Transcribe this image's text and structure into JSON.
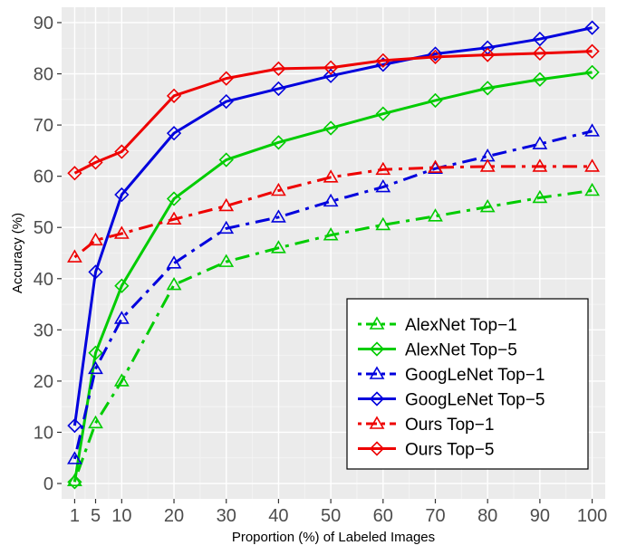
{
  "chart_data": {
    "type": "line",
    "xlabel": "Proportion (%) of Labeled Images",
    "ylabel": "Accuracy (%)",
    "x": [
      1,
      5,
      10,
      20,
      30,
      40,
      50,
      60,
      70,
      80,
      90,
      100
    ],
    "xticks": [
      1,
      5,
      10,
      20,
      30,
      40,
      50,
      60,
      70,
      80,
      90,
      100
    ],
    "yticks": [
      0,
      10,
      20,
      30,
      40,
      50,
      60,
      70,
      80,
      90
    ],
    "xlim": [
      -1.5,
      102.5
    ],
    "ylim": [
      -3,
      93
    ],
    "grid": true,
    "legend_position": "bottom-right",
    "series": [
      {
        "name": "AlexNet Top−1",
        "color": "#00cc00",
        "marker": "triangle",
        "dash": "dotdash",
        "values": [
          0.5,
          11.8,
          20,
          38.8,
          43.3,
          46,
          48.5,
          50.5,
          52.2,
          54,
          55.8,
          57.2
        ]
      },
      {
        "name": "AlexNet Top−5",
        "color": "#00cc00",
        "marker": "diamond",
        "dash": "solid",
        "values": [
          0.3,
          25.5,
          38.6,
          55.6,
          63.2,
          66.6,
          69.4,
          72.2,
          74.8,
          77.2,
          78.9,
          80.3
        ]
      },
      {
        "name": "GoogLeNet Top−1",
        "color": "#0000dd",
        "marker": "triangle",
        "dash": "dotdash",
        "values": [
          4.8,
          22.4,
          32.2,
          43,
          49.8,
          52,
          55.1,
          57.9,
          61.5,
          63.9,
          66.3,
          68.8
        ]
      },
      {
        "name": "GoogLeNet Top−5",
        "color": "#0000dd",
        "marker": "diamond",
        "dash": "solid",
        "values": [
          11.3,
          41.3,
          56.4,
          68.4,
          74.6,
          77.1,
          79.6,
          81.8,
          83.9,
          85.1,
          86.8,
          89
        ]
      },
      {
        "name": "Ours Top−1",
        "color": "#ee0000",
        "marker": "triangle",
        "dash": "dotdash",
        "values": [
          44.2,
          47.5,
          48.8,
          51.6,
          54.2,
          57.2,
          59.8,
          61.3,
          61.7,
          61.9,
          61.9,
          61.9
        ]
      },
      {
        "name": "Ours Top−5",
        "color": "#ee0000",
        "marker": "diamond",
        "dash": "solid",
        "values": [
          60.6,
          62.7,
          64.8,
          75.7,
          79.1,
          81,
          81.2,
          82.6,
          83.3,
          83.7,
          84,
          84.4
        ]
      }
    ]
  }
}
